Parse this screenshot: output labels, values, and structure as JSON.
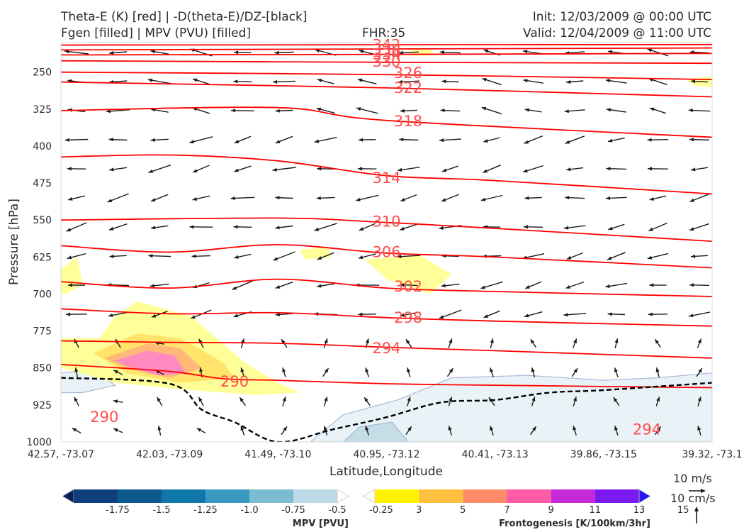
{
  "header": {
    "title_line1_left": "Theta-E (K) [red] | -D(theta-E)/DZ-[black]",
    "title_line2_left": "Fgen [filled] | MPV (PVU) [filled]",
    "title_center": "FHR:35",
    "title_line1_right": "Init: 12/03/2009 @ 00:00 UTC",
    "title_line2_right": "Valid: 12/04/2009 @ 11:00 UTC"
  },
  "colors": {
    "theta_e": "#ff0000",
    "theta_e_label": "#ff4d4d",
    "stability_line": "#000000",
    "mpv_contour": "#a8b8d8",
    "arrow": "#1a1a1a"
  },
  "chart_data": {
    "type": "cross-section",
    "xlabel": "Latitude,Longitude",
    "ylabel": "Pressure [hPa]",
    "x_ticks": [
      "42.57, -73.07",
      "42.03, -73.09",
      "41.49, -73.10",
      "40.95, -73.12",
      "40.41, -73.13",
      "39.86, -73.15",
      "39.32, -73.1"
    ],
    "y_ticks": [
      250,
      325,
      400,
      475,
      550,
      625,
      700,
      775,
      850,
      925,
      1000
    ],
    "ylim": [
      1000,
      190
    ],
    "theta_e_contours": [
      {
        "value": 342,
        "points": [
          [
            0,
            195
          ],
          [
            3,
            194.5
          ],
          [
            6,
            194
          ]
        ]
      },
      {
        "value": 338,
        "points": [
          [
            0,
            205
          ],
          [
            3,
            203
          ],
          [
            6,
            201
          ]
        ]
      },
      {
        "value": 334,
        "points": [
          [
            0,
            215
          ],
          [
            3,
            214
          ],
          [
            6,
            212
          ]
        ]
      },
      {
        "value": 330,
        "points": [
          [
            0,
            227
          ],
          [
            3,
            230
          ],
          [
            6,
            232
          ]
        ]
      },
      {
        "value": 326,
        "points": [
          [
            0,
            250
          ],
          [
            3,
            255
          ],
          [
            6,
            265
          ]
        ]
      },
      {
        "value": 322,
        "points": [
          [
            0,
            270
          ],
          [
            3,
            282
          ],
          [
            6,
            300
          ]
        ]
      },
      {
        "value": 318,
        "points": [
          [
            0,
            328
          ],
          [
            2,
            322
          ],
          [
            3,
            348
          ],
          [
            6,
            382
          ]
        ]
      },
      {
        "value": 314,
        "points": [
          [
            0,
            422
          ],
          [
            1,
            418
          ],
          [
            2,
            430
          ],
          [
            3,
            460
          ],
          [
            4,
            470
          ],
          [
            6,
            497
          ]
        ]
      },
      {
        "value": 310,
        "points": [
          [
            0,
            550
          ],
          [
            2,
            546
          ],
          [
            3,
            555
          ],
          [
            4,
            567
          ],
          [
            6,
            593
          ]
        ]
      },
      {
        "value": 306,
        "points": [
          [
            0,
            602
          ],
          [
            1,
            615
          ],
          [
            2,
            600
          ],
          [
            3,
            617
          ],
          [
            4,
            625
          ],
          [
            6,
            647
          ]
        ]
      },
      {
        "value": 302,
        "points": [
          [
            0,
            675
          ],
          [
            1,
            688
          ],
          [
            2,
            670
          ],
          [
            3,
            688
          ],
          [
            4,
            695
          ],
          [
            6,
            705
          ]
        ]
      },
      {
        "value": 298,
        "points": [
          [
            0,
            730
          ],
          [
            1,
            740
          ],
          [
            2,
            738
          ],
          [
            3,
            748
          ],
          [
            4,
            755
          ],
          [
            6,
            765
          ]
        ]
      },
      {
        "value": 294,
        "points": [
          [
            0,
            795
          ],
          [
            1,
            798
          ],
          [
            2,
            800
          ],
          [
            3,
            808
          ],
          [
            4,
            815
          ],
          [
            6,
            830
          ]
        ]
      },
      {
        "value": 290,
        "points": [
          [
            0,
            843
          ],
          [
            1,
            857
          ],
          [
            1.5,
            872
          ],
          [
            2,
            875
          ],
          [
            3,
            882
          ],
          [
            4,
            885
          ],
          [
            6,
            890
          ]
        ]
      }
    ],
    "theta_e_labels": [
      {
        "text": "342",
        "x": 3.0,
        "y": 195
      },
      {
        "text": "338",
        "x": 3.0,
        "y": 205
      },
      {
        "text": "334",
        "x": 3.0,
        "y": 214
      },
      {
        "text": "330",
        "x": 3.0,
        "y": 229
      },
      {
        "text": "326",
        "x": 3.2,
        "y": 252
      },
      {
        "text": "322",
        "x": 3.2,
        "y": 282
      },
      {
        "text": "318",
        "x": 3.2,
        "y": 350
      },
      {
        "text": "314",
        "x": 3.0,
        "y": 465
      },
      {
        "text": "310",
        "x": 3.0,
        "y": 553
      },
      {
        "text": "306",
        "x": 3.0,
        "y": 615
      },
      {
        "text": "302",
        "x": 3.2,
        "y": 685
      },
      {
        "text": "298",
        "x": 3.2,
        "y": 748
      },
      {
        "text": "294",
        "x": 3.0,
        "y": 810
      },
      {
        "text": "290",
        "x": 1.6,
        "y": 878
      },
      {
        "text": "290",
        "x": 0.4,
        "y": 950
      },
      {
        "text": "294",
        "x": 5.4,
        "y": 975
      }
    ],
    "stability_dashed": [
      [
        0,
        870
      ],
      [
        1,
        882
      ],
      [
        1.3,
        935
      ],
      [
        1.6,
        960
      ],
      [
        2,
        1000
      ],
      [
        2.5,
        975
      ],
      [
        3,
        950
      ],
      [
        3.5,
        920
      ],
      [
        4,
        915
      ],
      [
        4.5,
        900
      ],
      [
        5,
        895
      ],
      [
        6,
        880
      ]
    ],
    "frontogenesis_fills": [
      {
        "level": 3,
        "color": "#ffff9a",
        "points": [
          [
            0.35,
            790
          ],
          [
            0.5,
            745
          ],
          [
            0.7,
            715
          ],
          [
            1.2,
            745
          ],
          [
            1.7,
            840
          ],
          [
            2.0,
            880
          ],
          [
            2.2,
            900
          ],
          [
            1.8,
            905
          ],
          [
            1.2,
            895
          ],
          [
            0.5,
            880
          ],
          [
            0,
            850
          ],
          [
            0,
            790
          ]
        ]
      },
      {
        "level": 5,
        "color": "#ffe36a",
        "points": [
          [
            0.3,
            820
          ],
          [
            0.7,
            780
          ],
          [
            1.1,
            790
          ],
          [
            1.5,
            840
          ],
          [
            1.6,
            870
          ],
          [
            1.1,
            880
          ],
          [
            0.6,
            860
          ]
        ]
      },
      {
        "level": 7,
        "color": "#ffb878",
        "points": [
          [
            0.4,
            830
          ],
          [
            0.8,
            800
          ],
          [
            1.1,
            810
          ],
          [
            1.3,
            850
          ],
          [
            1.0,
            870
          ],
          [
            0.6,
            850
          ]
        ]
      },
      {
        "level": 9,
        "color": "#ff8ac0",
        "points": [
          [
            0.5,
            835
          ],
          [
            0.8,
            815
          ],
          [
            1.05,
            825
          ],
          [
            1.15,
            860
          ],
          [
            0.9,
            865
          ],
          [
            0.65,
            850
          ]
        ]
      },
      {
        "level": 3,
        "color": "#ffff9a",
        "points": [
          [
            0,
            650
          ],
          [
            0.15,
            625
          ],
          [
            0.2,
            680
          ],
          [
            0.05,
            700
          ],
          [
            0,
            700
          ]
        ]
      },
      {
        "level": 3,
        "color": "#ffff9a",
        "points": [
          [
            2.8,
            630
          ],
          [
            3.3,
            620
          ],
          [
            3.6,
            660
          ],
          [
            3.4,
            700
          ],
          [
            3.0,
            670
          ]
        ]
      },
      {
        "level": 3,
        "color": "#ffff9a",
        "points": [
          [
            2.2,
            610
          ],
          [
            2.45,
            605
          ],
          [
            2.5,
            625
          ],
          [
            2.25,
            630
          ]
        ]
      },
      {
        "level": 3,
        "color": "#ffff9a",
        "points": [
          [
            3.2,
            205
          ],
          [
            3.4,
            203
          ],
          [
            3.45,
            215
          ],
          [
            3.25,
            217
          ]
        ]
      },
      {
        "level": 3,
        "color": "#ffff9a",
        "points": [
          [
            5.75,
            265
          ],
          [
            6.0,
            258
          ],
          [
            6.0,
            280
          ],
          [
            5.85,
            278
          ]
        ]
      }
    ],
    "mpv_fills": [
      {
        "level": -0.25,
        "color": "#e9f3f7",
        "points": [
          [
            2.3,
            1000
          ],
          [
            2.6,
            945
          ],
          [
            3.1,
            915
          ],
          [
            3.6,
            870
          ],
          [
            4.3,
            865
          ],
          [
            5.0,
            875
          ],
          [
            5.5,
            870
          ],
          [
            6.0,
            860
          ],
          [
            6.0,
            1000
          ]
        ]
      },
      {
        "level": -0.25,
        "color": "#e9f3f7",
        "points": [
          [
            0,
            860
          ],
          [
            0.3,
            855
          ],
          [
            0.5,
            885
          ],
          [
            0.2,
            900
          ],
          [
            0,
            900
          ]
        ]
      },
      {
        "level": -0.5,
        "color": "#c5dde6",
        "points": [
          [
            2.6,
            1000
          ],
          [
            2.75,
            970
          ],
          [
            3.05,
            960
          ],
          [
            3.2,
            1000
          ]
        ]
      }
    ],
    "arrow_spacing": {
      "cols": 16,
      "rows": 14
    }
  },
  "colorbars": {
    "mpv": {
      "title": "MPV [PVU]",
      "ticks": [
        "-1.75",
        "-1.5",
        "-1.25",
        "-1.0",
        "-0.75",
        "-0.5",
        "-0.25"
      ],
      "colors": [
        "#0b1e5b",
        "#0e3f7a",
        "#0e5a8f",
        "#1078a8",
        "#3a9bc0",
        "#7bbcd3",
        "#bcdbe6",
        "#ffffff"
      ]
    },
    "fgen": {
      "title": "Frontogenesis [K/100km/3hr]",
      "ticks": [
        "3",
        "5",
        "7",
        "9",
        "11",
        "13",
        "15"
      ],
      "colors": [
        "#ffffff",
        "#fff200",
        "#ffbf3f",
        "#ff8c69",
        "#ff5ca8",
        "#c52ad6",
        "#7a1af0",
        "#2a14f2"
      ]
    }
  },
  "reference_vectors": {
    "horizontal": "10 m/s",
    "vertical": "10 cm/s"
  }
}
